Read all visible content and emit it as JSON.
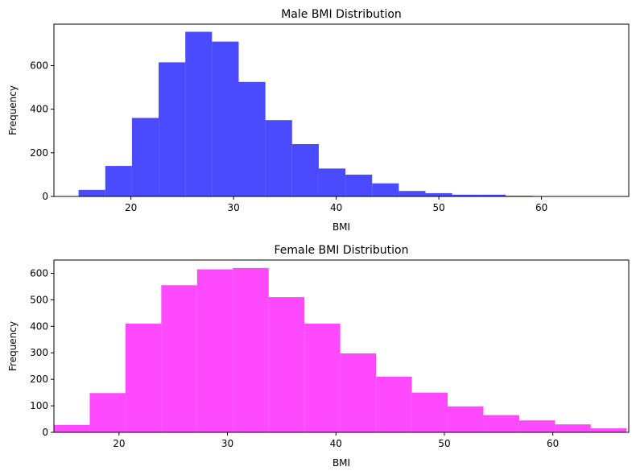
{
  "chart_data": [
    {
      "type": "bar",
      "title": "Male BMI Distribution",
      "xlabel": "BMI",
      "ylabel": "Frequency",
      "color": "#4a4aff",
      "xlim": [
        12.5,
        68.5
      ],
      "ylim": [
        0,
        790
      ],
      "xticks": [
        20,
        30,
        40,
        50,
        60
      ],
      "yticks": [
        0,
        200,
        400,
        600
      ],
      "bin_width": 2.6,
      "bin_starts": [
        14.9,
        17.5,
        20.1,
        22.7,
        25.3,
        27.9,
        30.5,
        33.1,
        35.7,
        38.3,
        40.9,
        43.5,
        46.1,
        48.7,
        51.3,
        53.9,
        56.5,
        59.1,
        61.7,
        64.3
      ],
      "values": [
        30,
        140,
        360,
        615,
        755,
        710,
        525,
        350,
        240,
        128,
        100,
        60,
        25,
        15,
        8,
        8,
        3,
        1,
        1,
        1
      ]
    },
    {
      "type": "bar",
      "title": "Female BMI Distribution",
      "xlabel": "BMI",
      "ylabel": "Frequency",
      "color": "#ff4aff",
      "xlim": [
        14.0,
        67.0
      ],
      "ylim": [
        0,
        650
      ],
      "xticks": [
        20,
        30,
        40,
        50,
        60
      ],
      "yticks": [
        0,
        100,
        200,
        300,
        400,
        500,
        600
      ],
      "bin_width": 3.3,
      "bin_starts": [
        14.0,
        17.3,
        20.6,
        23.9,
        27.2,
        30.5,
        33.8,
        37.1,
        40.4,
        43.7,
        47.0,
        50.3,
        53.6,
        56.9,
        60.2,
        63.5
      ],
      "values": [
        28,
        148,
        410,
        555,
        615,
        620,
        510,
        410,
        298,
        210,
        150,
        98,
        65,
        45,
        30,
        15
      ]
    }
  ]
}
